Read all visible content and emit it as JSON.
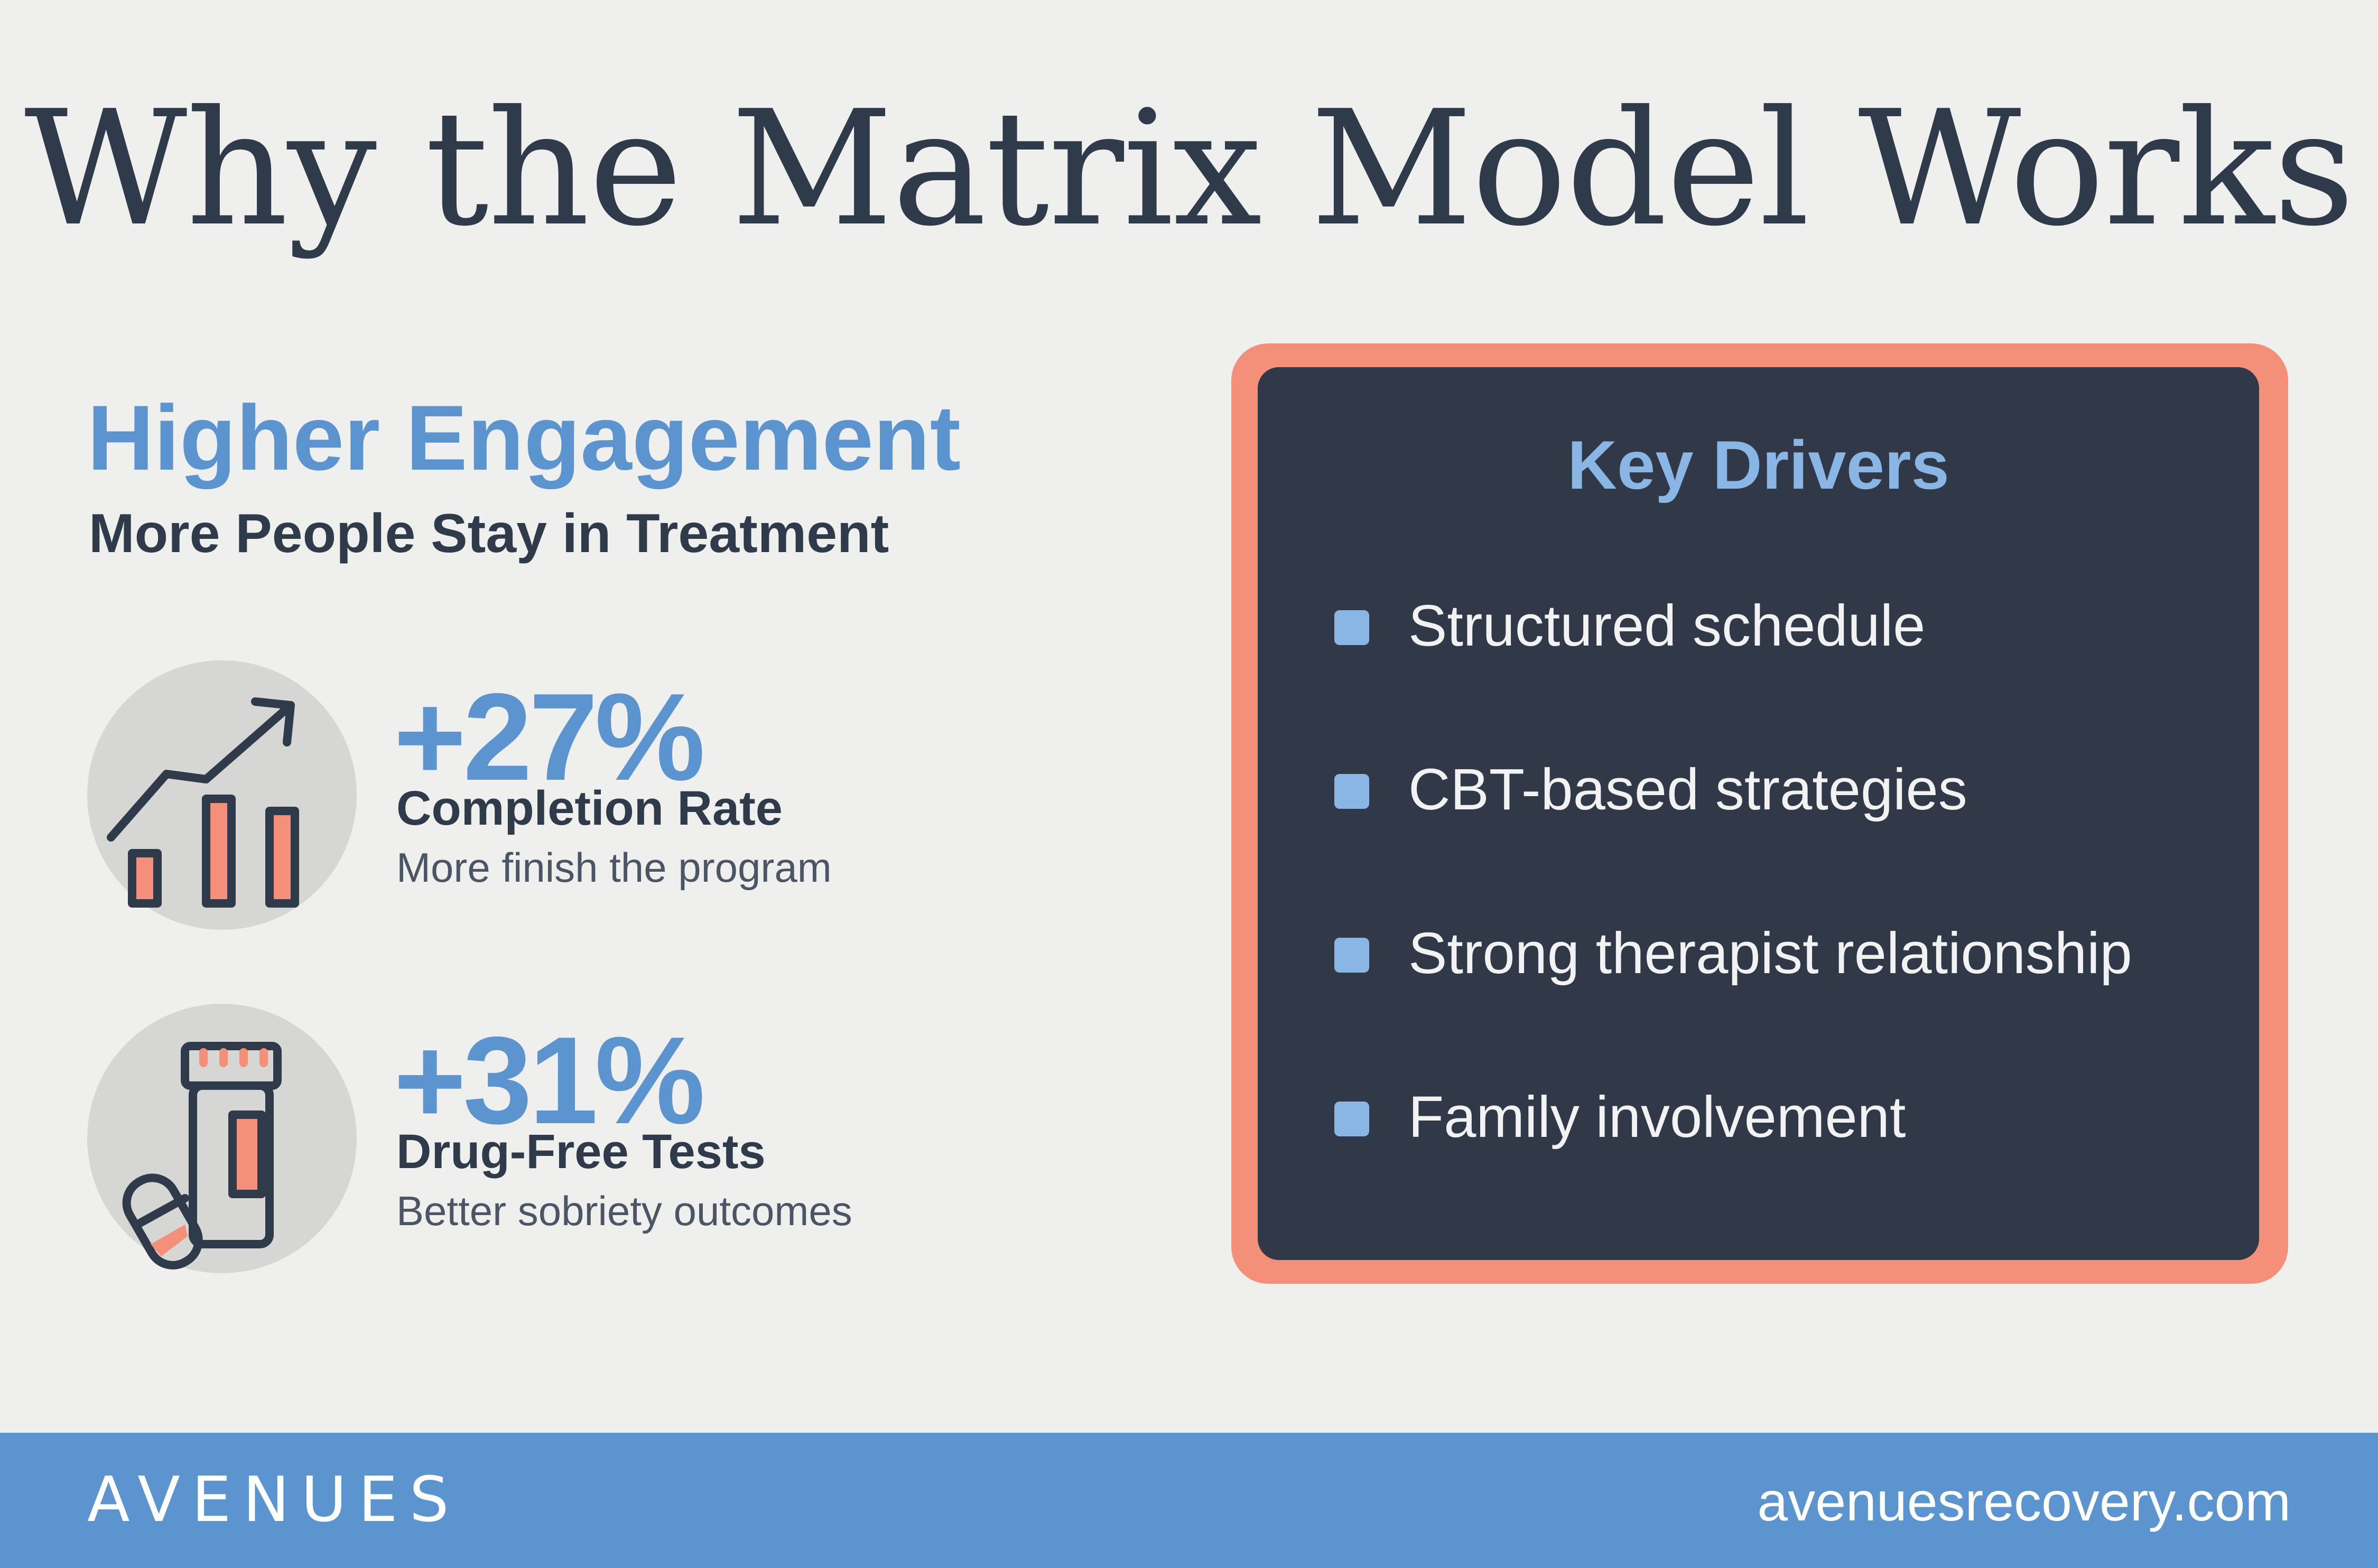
{
  "title": "Why the Matrix Model Works",
  "section": {
    "heading": "Higher Engagement",
    "subheading": "More People Stay in Treatment"
  },
  "stats": [
    {
      "value": "+27%",
      "label": "Completion Rate",
      "description": "More finish the program",
      "icon": "rising-bar-chart-icon"
    },
    {
      "value": "+31%",
      "label": "Drug-Free Tests",
      "description": "Better sobriety outcomes",
      "icon": "pill-bottle-icon"
    }
  ],
  "key_drivers": {
    "title": "Key Drivers",
    "items": [
      "Structured schedule",
      "CBT-based strategies",
      "Strong therapist relationship",
      "Family involvement"
    ]
  },
  "footer": {
    "logo": "AVENUES",
    "website": "avenuesrecovery.com"
  },
  "colors": {
    "background": "#efefed",
    "accent_blue": "#5b94cf",
    "dark_navy": "#2f3a4a",
    "panel": "#313949",
    "coral": "#f48f7a"
  }
}
